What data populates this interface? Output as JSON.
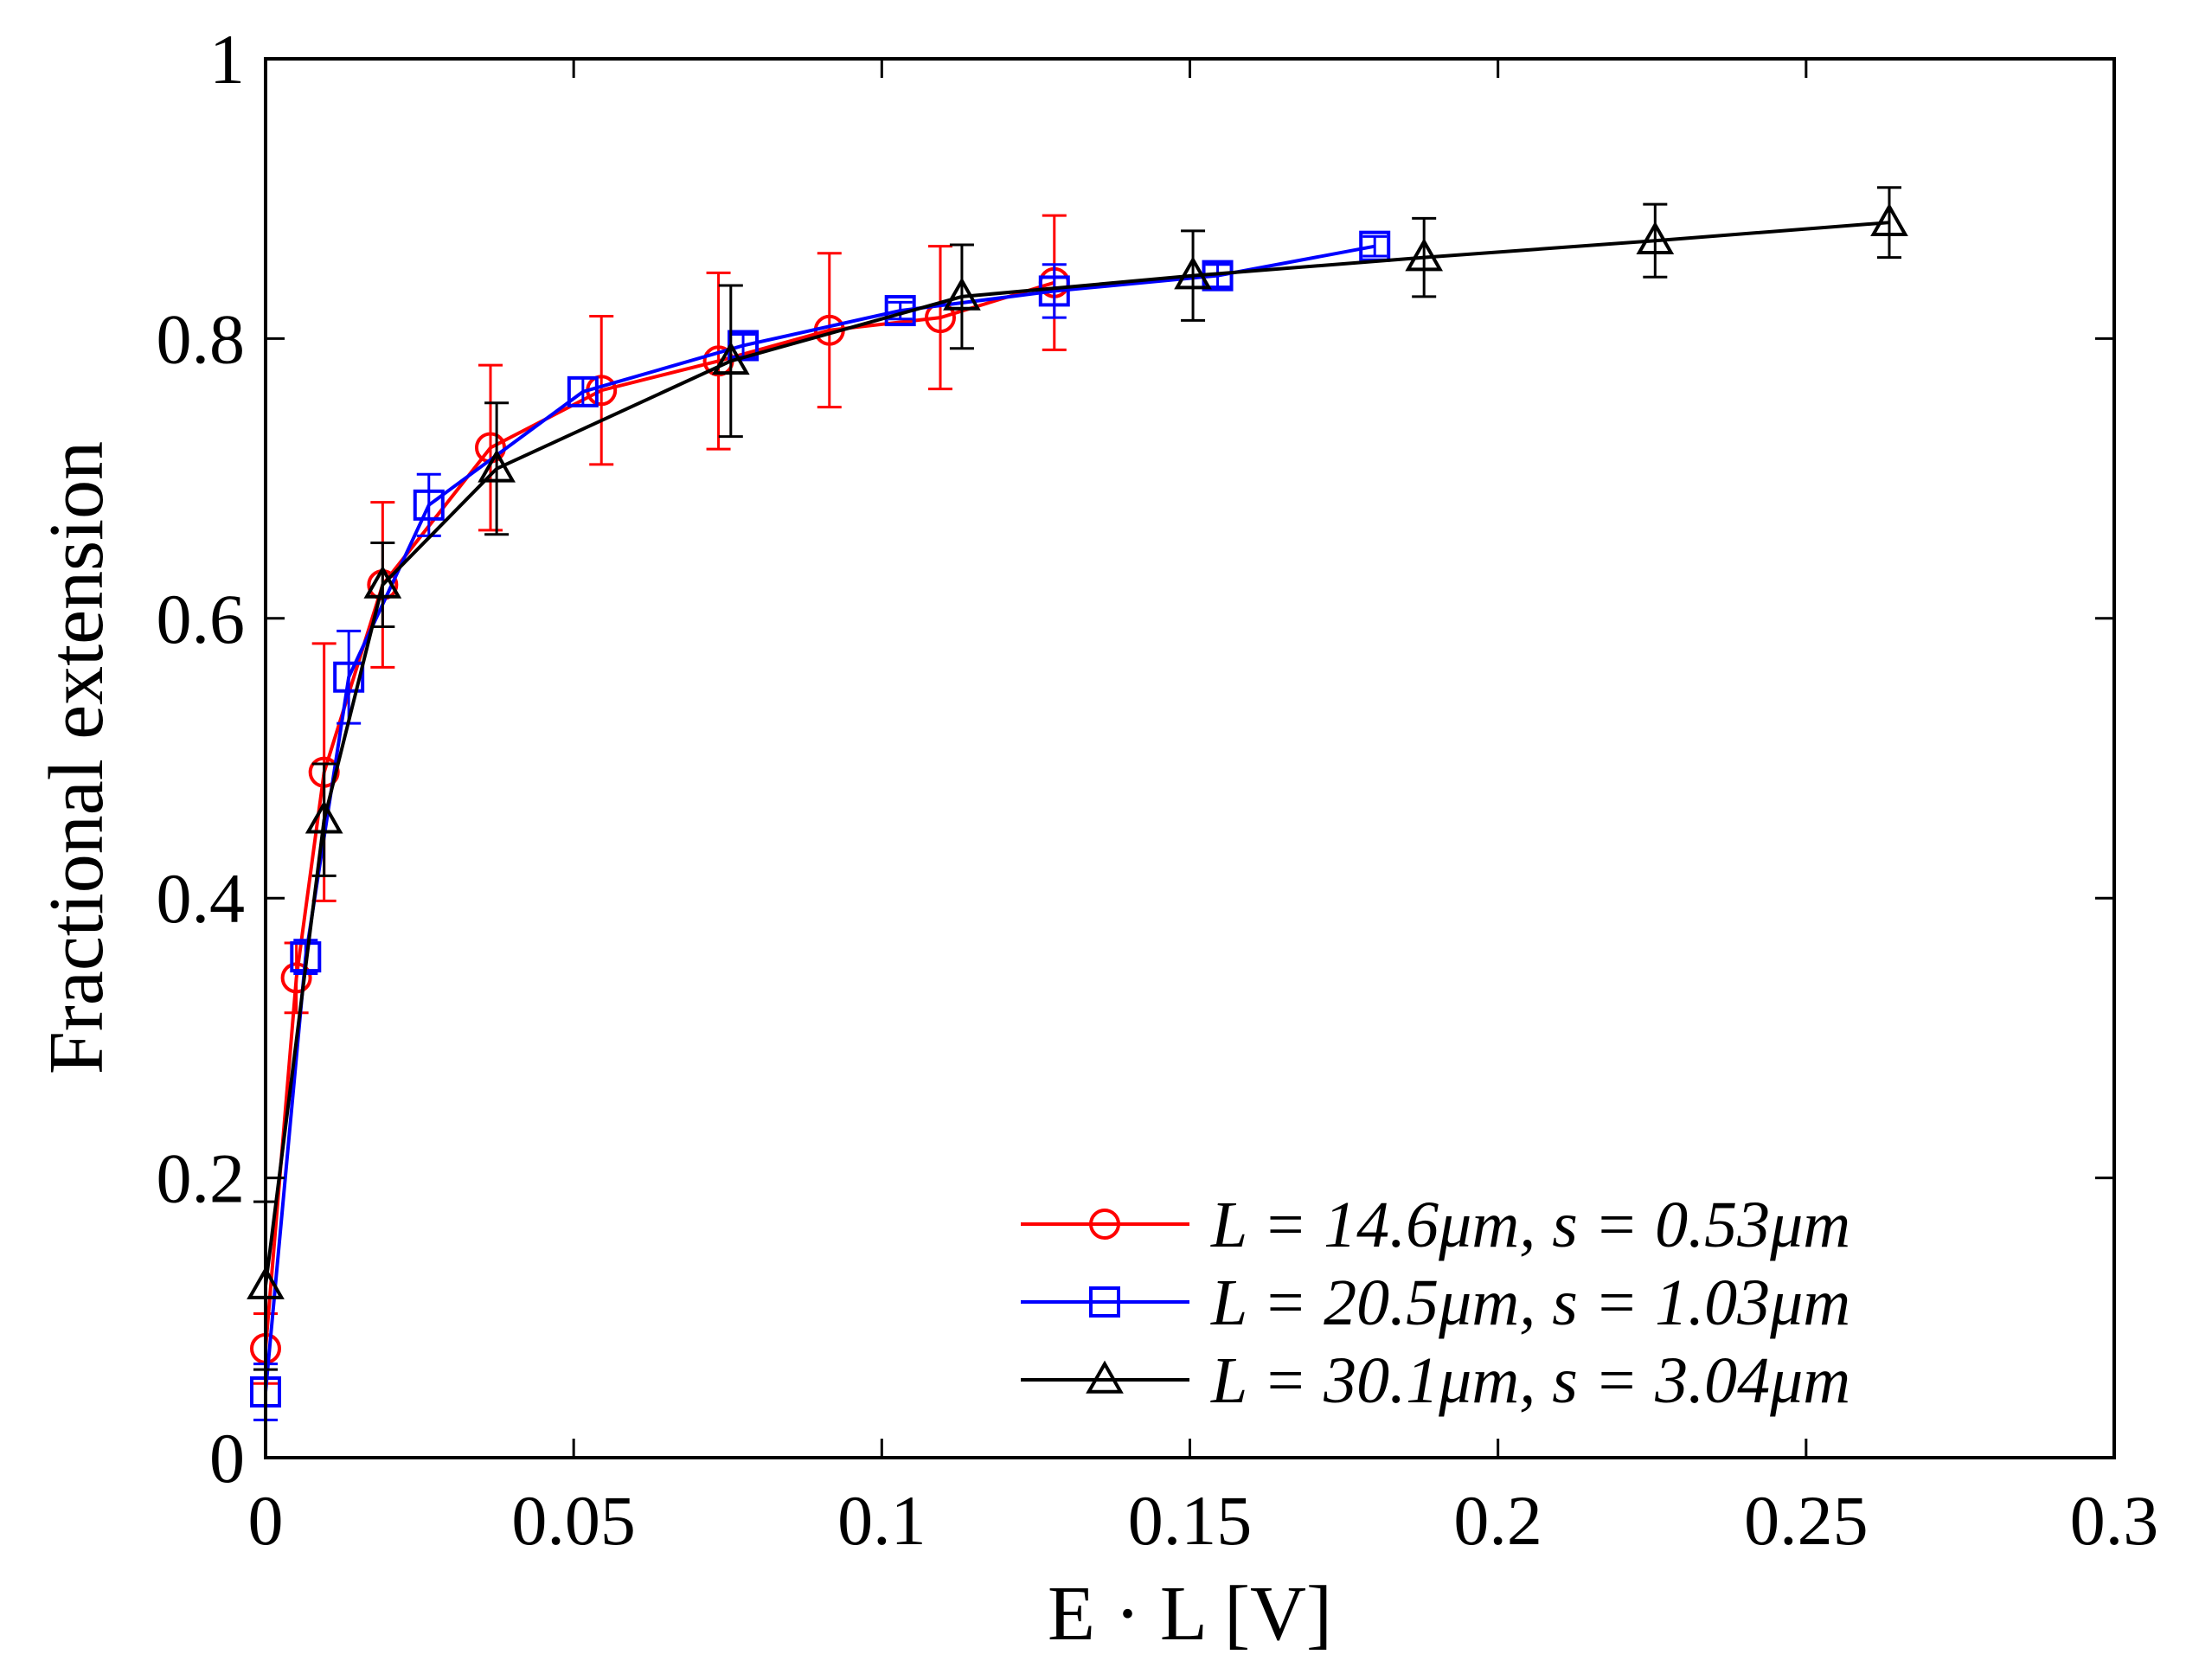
{
  "chart_data": {
    "type": "line",
    "title": "",
    "xlabel": "E · L  [V]",
    "ylabel": "Fractional  extension",
    "xlim": [
      0,
      0.3
    ],
    "ylim": [
      0,
      1
    ],
    "xticks": [
      0,
      0.05,
      0.1,
      0.15,
      0.2,
      0.25,
      0.3
    ],
    "xtick_labels": [
      "0",
      "0.05",
      "0.1",
      "0.15",
      "0.2",
      "0.25",
      "0.3"
    ],
    "yticks": [
      0,
      0.2,
      0.4,
      0.6,
      0.8,
      1
    ],
    "ytick_labels": [
      "0",
      "0.2",
      "0.4",
      "0.6",
      "0.8",
      "1"
    ],
    "grid": false,
    "legend_position": "bottom-right",
    "series": [
      {
        "name": "L = 14.6μm, s = 0.53μm",
        "color": "#ff0000",
        "marker": "circle",
        "x": [
          0.0,
          0.005,
          0.0095,
          0.019,
          0.0365,
          0.0545,
          0.0735,
          0.0915,
          0.1095,
          0.128
        ],
        "y": [
          0.078,
          0.343,
          0.49,
          0.624,
          0.722,
          0.763,
          0.784,
          0.806,
          0.815,
          0.84
        ],
        "err": [
          0.025,
          0.025,
          0.092,
          0.059,
          0.059,
          0.053,
          0.063,
          0.055,
          0.051,
          0.048
        ]
      },
      {
        "name": "L = 20.5μm, s = 1.03μm",
        "color": "#0000ff",
        "marker": "square",
        "x": [
          0.0,
          0.0065,
          0.0135,
          0.0265,
          0.0515,
          0.0775,
          0.103,
          0.128,
          0.1545,
          0.18
        ],
        "y": [
          0.047,
          0.358,
          0.558,
          0.681,
          0.762,
          0.795,
          0.82,
          0.834,
          0.845,
          0.866
        ],
        "err": [
          0.02,
          0.012,
          0.033,
          0.022,
          0.01,
          0.008,
          0.006,
          0.019,
          0.008,
          0.007
        ]
      },
      {
        "name": "L = 30.1μm, s = 3.04μm",
        "color": "#000000",
        "marker": "triangle",
        "x": [
          0.0,
          0.0095,
          0.019,
          0.0375,
          0.0755,
          0.113,
          0.1505,
          0.188,
          0.2255,
          0.2635
        ],
        "y": [
          0.123,
          0.456,
          0.624,
          0.707,
          0.784,
          0.83,
          0.845,
          0.858,
          0.87,
          0.883
        ],
        "err": [
          0.06,
          0.04,
          0.03,
          0.047,
          0.054,
          0.037,
          0.032,
          0.028,
          0.026,
          0.025
        ]
      }
    ]
  }
}
